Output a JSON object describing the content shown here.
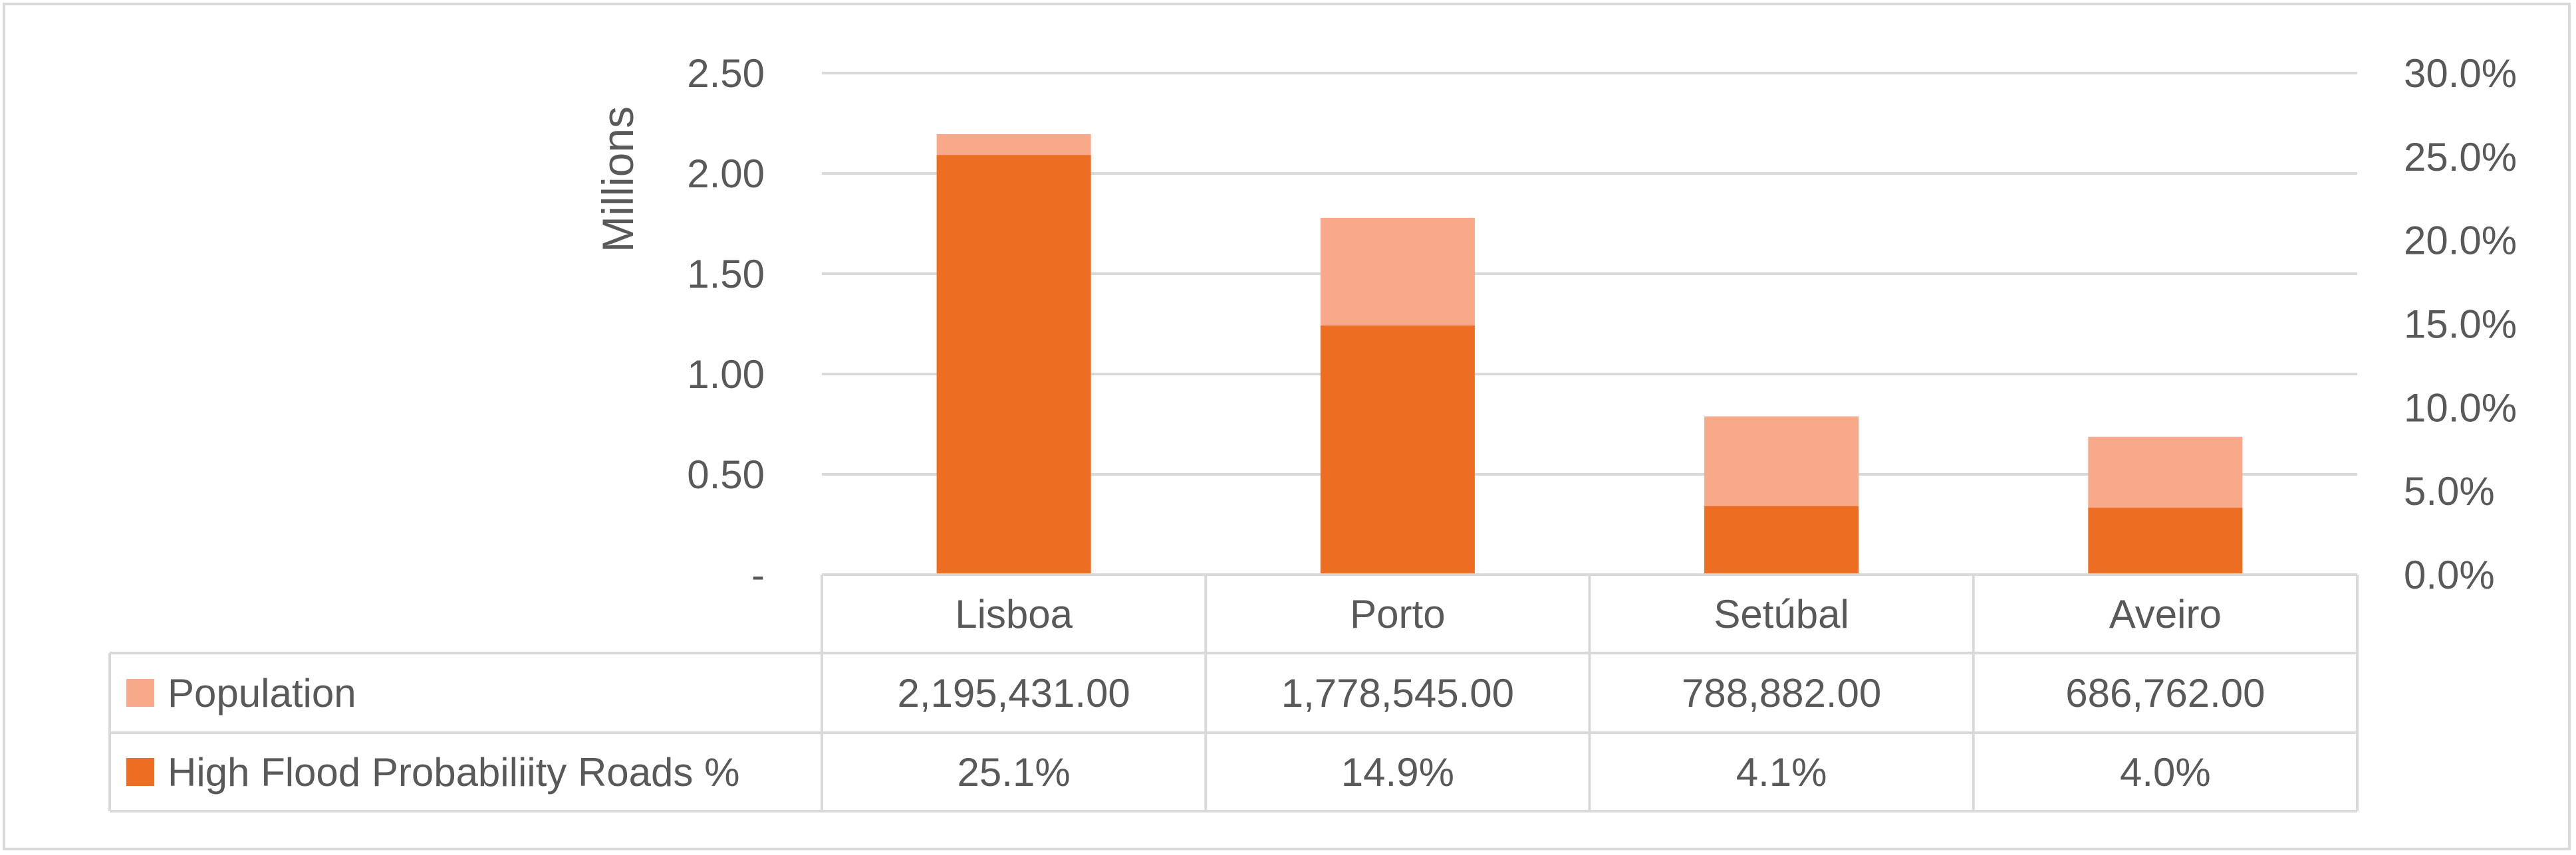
{
  "chart_data": {
    "type": "bar",
    "categories": [
      "Lisboa",
      "Porto",
      "Setúbal",
      "Aveiro"
    ],
    "series": [
      {
        "name": "Population",
        "values": [
          2195431.0,
          1778545.0,
          788882.0,
          686762.0
        ],
        "value_labels": [
          "2,195,431.00",
          "1,778,545.00",
          "788,882.00",
          "686,762.00"
        ],
        "axis": "left",
        "color": "#f8a98a"
      },
      {
        "name": "High Flood Probabiliity Roads %",
        "values": [
          25.1,
          14.9,
          4.1,
          4.0
        ],
        "value_labels": [
          "25.1%",
          "14.9%",
          "4.1%",
          "4.0%"
        ],
        "axis": "right",
        "color": "#ed6d23"
      }
    ],
    "ylabel": "Millions",
    "ylim": [
      0,
      2.5
    ],
    "y_ticks": [
      "-",
      "0.50",
      "1.00",
      "1.50",
      "2.00",
      "2.50"
    ],
    "y2lim": [
      0,
      30
    ],
    "y2_ticks": [
      "0.0%",
      "5.0%",
      "10.0%",
      "15.0%",
      "20.0%",
      "25.0%",
      "30.0%"
    ],
    "grid": true,
    "legend": "data-table",
    "gridline_color": "#d9d9d9",
    "text_color": "#595959"
  }
}
